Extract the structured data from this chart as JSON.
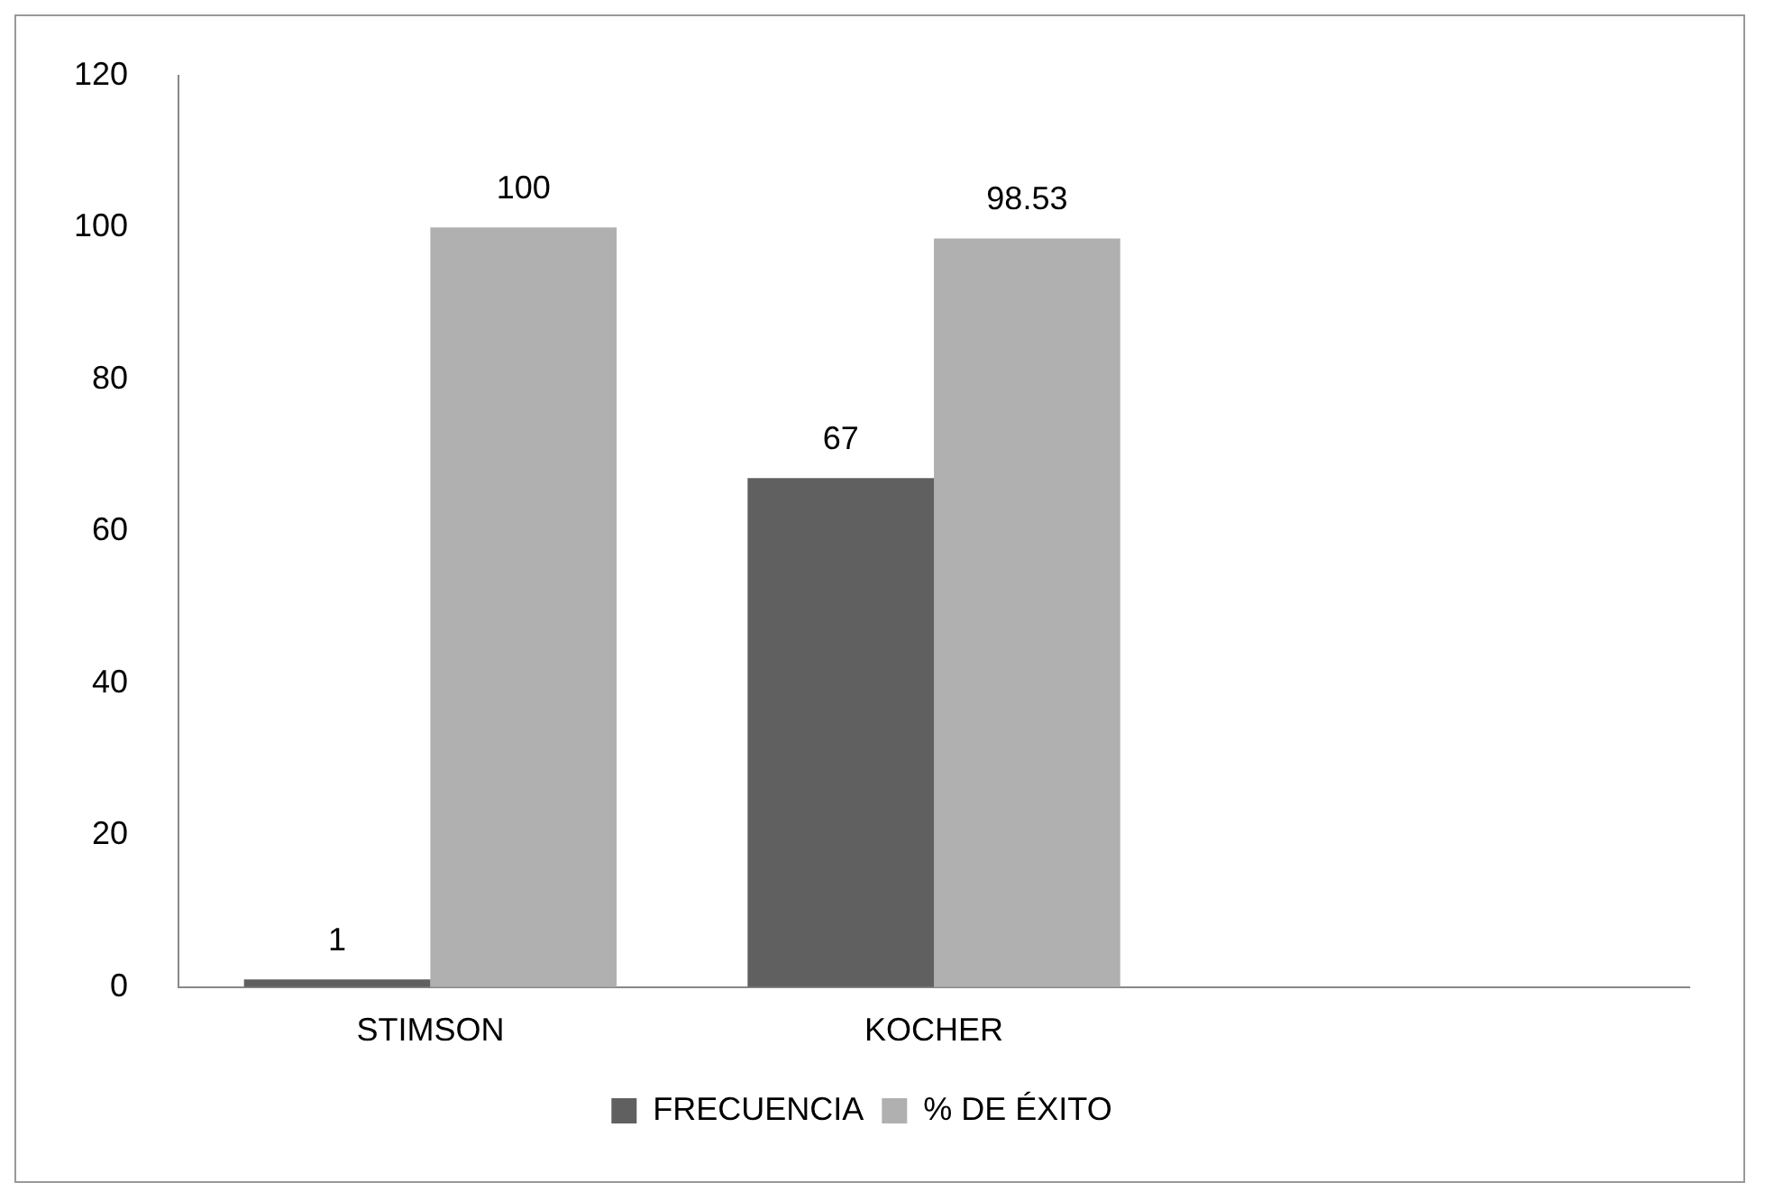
{
  "chart_data": {
    "type": "bar",
    "categories": [
      "STIMSON",
      "KOCHER",
      null
    ],
    "series": [
      {
        "name": "FRECUENCIA",
        "color": "#606060",
        "values": [
          1,
          67,
          null
        ]
      },
      {
        "name": "% DE ÉXITO",
        "color": "#b0b0b0",
        "values": [
          100,
          98.53,
          null
        ]
      }
    ],
    "ylim": [
      0,
      120
    ],
    "yticks": [
      0,
      20,
      40,
      60,
      80,
      100,
      120
    ],
    "grid": false,
    "legend": "bottom",
    "data_labels": true
  }
}
